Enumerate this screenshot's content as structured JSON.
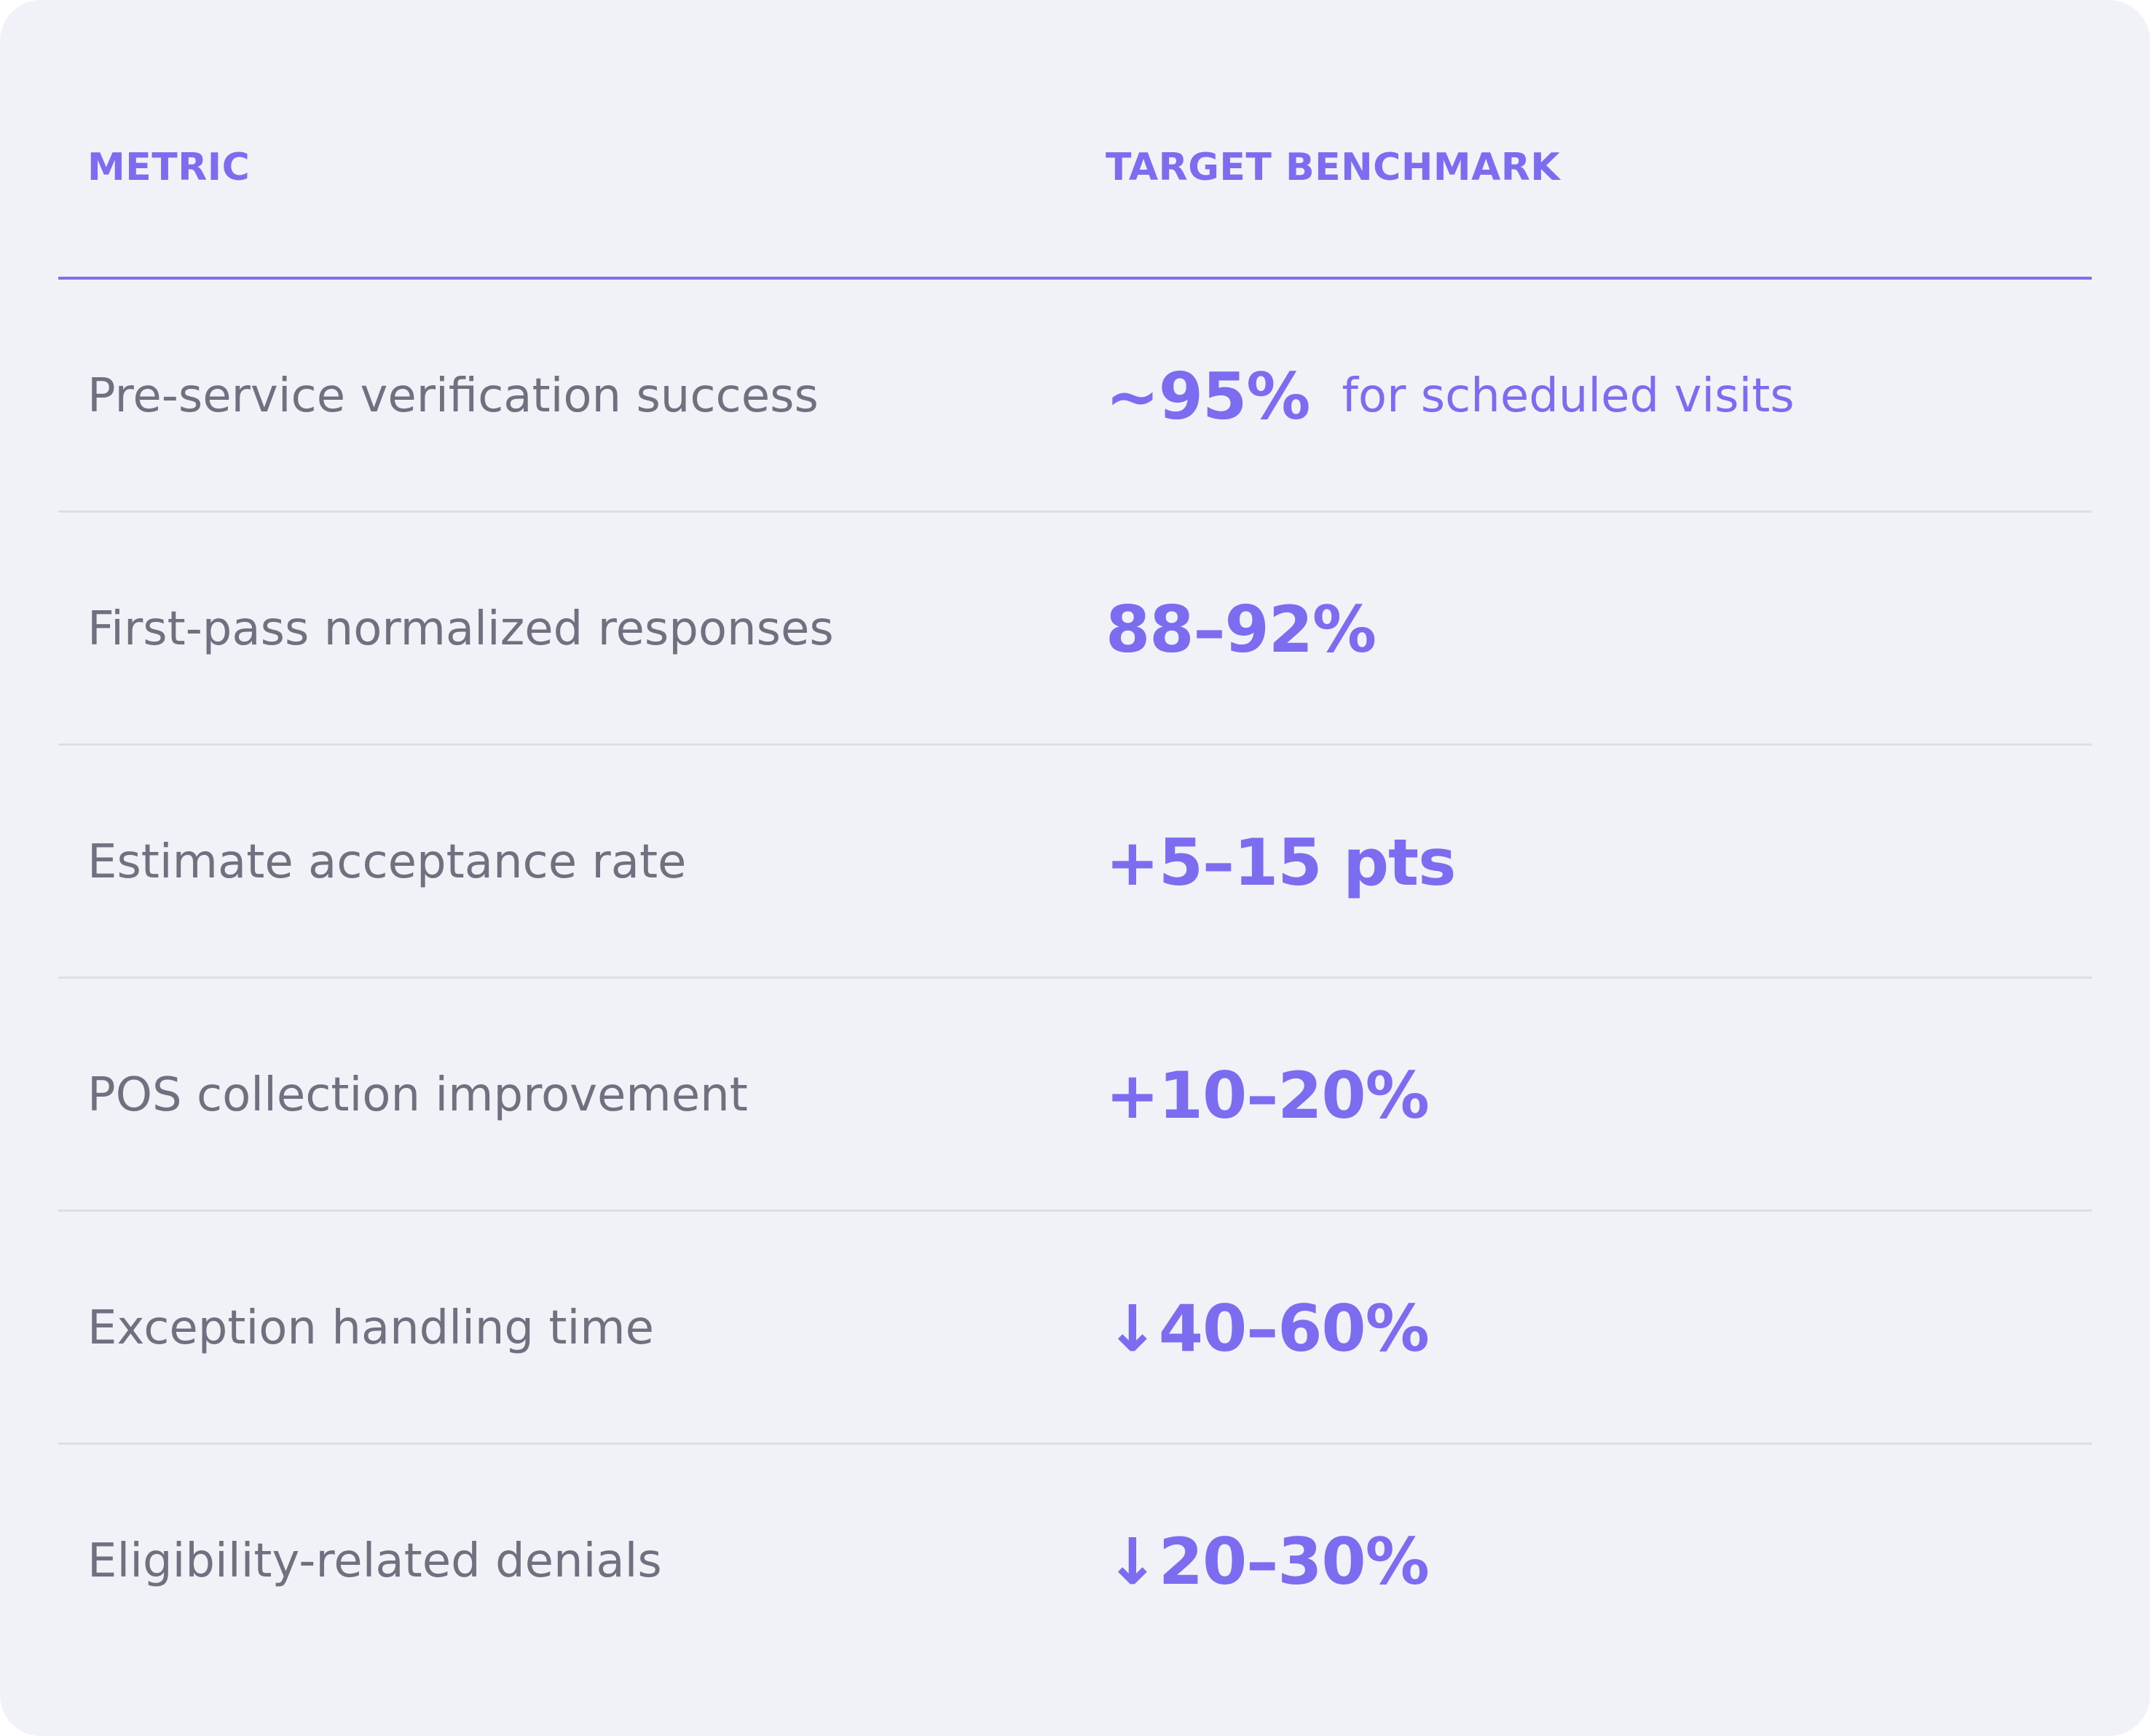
{
  "header": {
    "metric": "METRIC",
    "target": "TARGET BENCHMARK"
  },
  "rows": [
    {
      "metric": "Pre-service verification success",
      "value": "~95%",
      "note": "for scheduled visits"
    },
    {
      "metric": "First-pass normalized responses",
      "value": "88–92%",
      "note": ""
    },
    {
      "metric": "Estimate acceptance rate",
      "value": "+5–15 pts",
      "note": ""
    },
    {
      "metric": "POS collection improvement",
      "value": "+10–20%",
      "note": ""
    },
    {
      "metric": "Exception handling time",
      "value": "↓40–60%",
      "note": ""
    },
    {
      "metric": "Eligibility-related denials",
      "value": "↓20–30%",
      "note": ""
    }
  ]
}
